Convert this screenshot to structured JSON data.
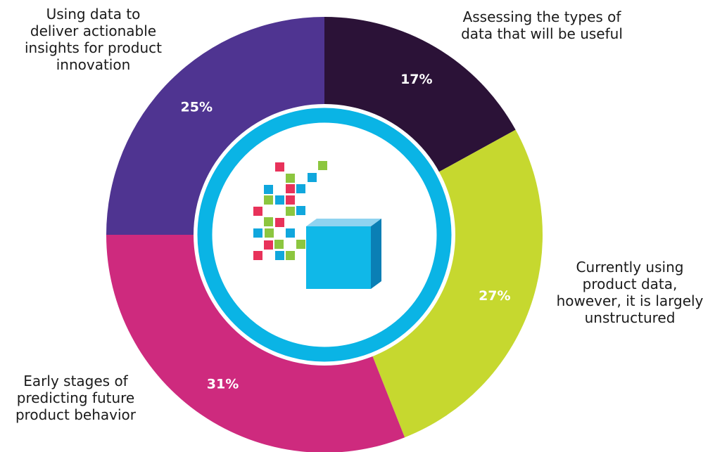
{
  "chart_data": {
    "type": "pie",
    "categories": [
      "Assessing the types of\ndata that will be useful",
      "Currently using\nproduct data,\nhowever, it is largely\nunstructured",
      "Early stages of\npredicting future\nproduct behavior",
      "Using data to\ndeliver actionable\ninsights for product\ninnovation"
    ],
    "values": [
      17,
      27,
      31,
      25
    ],
    "value_labels": [
      "17%",
      "27%",
      "31%",
      "25%"
    ],
    "colors": [
      "#2B1237",
      "#C6D82F",
      "#CE2A7E",
      "#4F3491"
    ],
    "style": "donut",
    "center_icon": "data-cube-icon",
    "ring_color": "#0AB4E5"
  }
}
